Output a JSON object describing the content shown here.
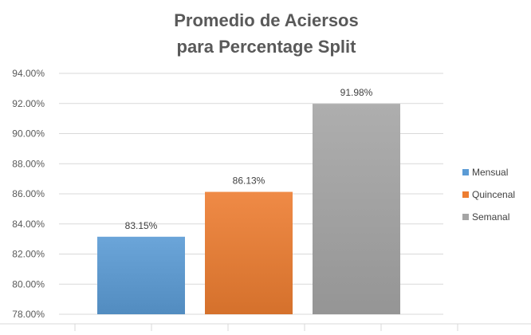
{
  "chart_data": {
    "type": "bar",
    "title": [
      "Promedio de Aciersos",
      "para Percentage Split"
    ],
    "categories": [
      "Mensual",
      "Quincenal",
      "Semanal"
    ],
    "values": [
      83.15,
      86.13,
      91.98
    ],
    "data_labels": [
      "83.15%",
      "86.13%",
      "91.98%"
    ],
    "colors": [
      "#5b9bd5",
      "#ed7d31",
      "#a5a5a5"
    ],
    "ylim": [
      78,
      94
    ],
    "yticks": [
      78,
      80,
      82,
      84,
      86,
      88,
      90,
      92,
      94
    ],
    "ytick_labels": [
      "78.00%",
      "80.00%",
      "82.00%",
      "84.00%",
      "86.00%",
      "88.00%",
      "90.00%",
      "92.00%",
      "94.00%"
    ],
    "xlabel": "",
    "ylabel": "",
    "grid": true,
    "legend": {
      "position": "right",
      "entries": [
        "Mensual",
        "Quincenal",
        "Semanal"
      ]
    }
  }
}
